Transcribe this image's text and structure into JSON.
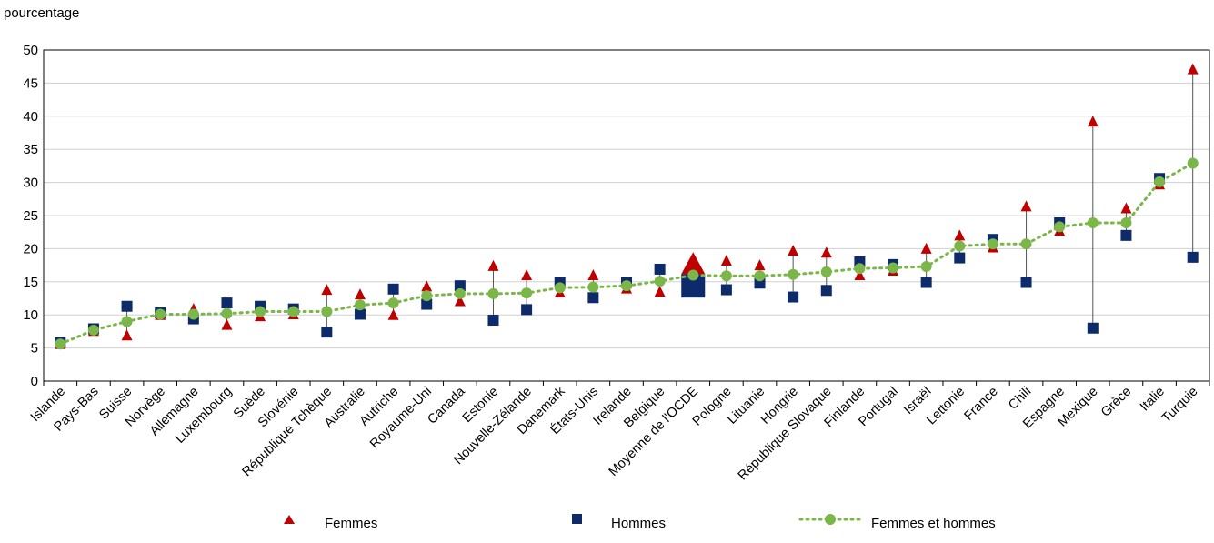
{
  "chart_data": {
    "type": "scatter",
    "ylabel": "pourcentage",
    "xlabel": "",
    "title": "",
    "ylim": [
      0,
      50
    ],
    "yticks": [
      0,
      5,
      10,
      15,
      20,
      25,
      30,
      35,
      40,
      45,
      50
    ],
    "grid": true,
    "legend_position": "bottom",
    "categories": [
      "Islande",
      "Pays-Bas",
      "Suisse",
      "Norvège",
      "Allemagne",
      "Luxembourg",
      "Suède",
      "Slovénie",
      "République Tchèque",
      "Australie",
      "Autriche",
      "Royaume-Uni",
      "Canada",
      "Estonie",
      "Nouvelle-Zélande",
      "Danemark",
      "États-Unis",
      "Irelande",
      "Belgique",
      "Moyenne de l'OCDE",
      "Pologne",
      "Lituanie",
      "Hongrie",
      "République Slovaque",
      "Finlande",
      "Portugal",
      "Israël",
      "Lettonie",
      "France",
      "Chili",
      "Espagne",
      "Mexique",
      "Grèce",
      "Italie",
      "Turquie"
    ],
    "highlight_category": "Moyenne de l'OCDE",
    "series": [
      {
        "name": "Femmes",
        "marker": "triangle",
        "color": "#c00000",
        "values": [
          5.5,
          7.5,
          6.8,
          9.9,
          10.8,
          8.4,
          9.7,
          10.0,
          13.7,
          13.0,
          9.9,
          14.2,
          12.0,
          17.3,
          15.9,
          13.3,
          15.9,
          13.9,
          13.4,
          17.5,
          18.1,
          17.4,
          19.6,
          19.3,
          15.9,
          16.6,
          19.9,
          21.9,
          20.1,
          26.3,
          22.6,
          39.1,
          26.0,
          29.6,
          47.0
        ]
      },
      {
        "name": "Hommes",
        "marker": "square",
        "color": "#0d2b6b",
        "values": [
          5.8,
          7.9,
          11.3,
          10.3,
          9.4,
          11.8,
          11.3,
          10.9,
          7.4,
          10.1,
          13.9,
          11.6,
          14.4,
          9.2,
          10.8,
          14.9,
          12.6,
          14.9,
          16.9,
          14.4,
          13.8,
          14.8,
          12.7,
          13.7,
          18.0,
          17.6,
          14.9,
          18.6,
          21.4,
          14.9,
          23.9,
          8.0,
          22.0,
          30.6,
          18.7
        ]
      },
      {
        "name": "Femmes et hommes",
        "marker": "circle-dotted-line",
        "color": "#7ab648",
        "values": [
          5.6,
          7.7,
          9.0,
          10.1,
          10.1,
          10.2,
          10.5,
          10.5,
          10.5,
          11.5,
          11.8,
          12.9,
          13.2,
          13.2,
          13.3,
          14.1,
          14.2,
          14.4,
          15.1,
          16.0,
          15.9,
          15.9,
          16.1,
          16.5,
          17.0,
          17.1,
          17.3,
          20.4,
          20.7,
          20.7,
          23.3,
          23.9,
          23.9,
          30.1,
          32.9
        ]
      }
    ]
  }
}
